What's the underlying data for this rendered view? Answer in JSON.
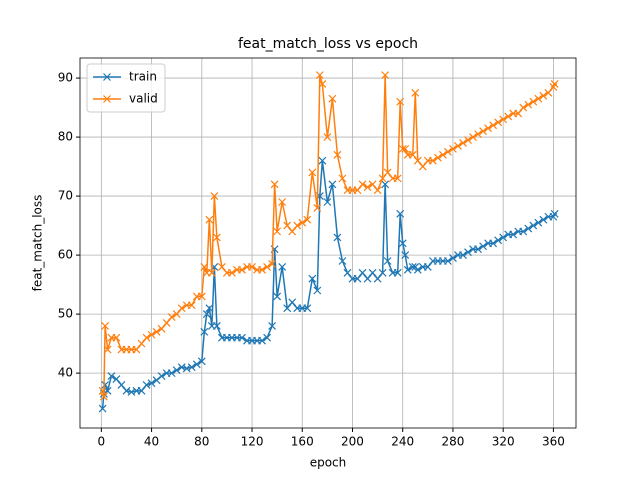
{
  "chart_data": {
    "type": "line",
    "title": "feat_match_loss vs epoch",
    "x_label": "epoch",
    "y_label": "feat_match_loss",
    "x": [
      1,
      2,
      3,
      5,
      8,
      12,
      16,
      20,
      24,
      28,
      32,
      36,
      40,
      44,
      48,
      52,
      56,
      60,
      64,
      68,
      72,
      76,
      80,
      82,
      84,
      86,
      88,
      90,
      92,
      96,
      100,
      104,
      108,
      112,
      116,
      120,
      124,
      128,
      132,
      136,
      138,
      140,
      144,
      148,
      152,
      156,
      160,
      164,
      168,
      172,
      174,
      176,
      180,
      184,
      188,
      192,
      196,
      200,
      204,
      208,
      212,
      216,
      220,
      224,
      226,
      228,
      232,
      236,
      238,
      240,
      242,
      244,
      248,
      250,
      252,
      256,
      260,
      264,
      268,
      272,
      276,
      280,
      284,
      288,
      292,
      296,
      300,
      304,
      308,
      312,
      316,
      320,
      324,
      328,
      332,
      336,
      340,
      344,
      348,
      352,
      356,
      360,
      361
    ],
    "series": [
      {
        "name": "train",
        "color": "#1f77b4",
        "values": [
          34,
          36.5,
          38,
          37,
          39.5,
          39,
          38,
          37,
          36.8,
          37,
          37,
          38,
          38.3,
          38.8,
          39.5,
          40,
          40,
          40.5,
          41,
          40.8,
          41,
          41.5,
          42,
          47,
          50,
          51,
          48,
          58,
          48,
          46,
          46,
          46,
          46,
          46,
          45.5,
          45.5,
          45.5,
          45.5,
          46,
          48,
          61,
          53,
          58,
          51,
          52,
          51,
          51,
          51,
          56,
          54,
          70,
          76,
          69,
          72,
          63,
          59,
          57,
          56,
          56,
          57,
          56,
          57,
          56,
          57,
          72,
          59,
          57,
          57,
          67,
          62,
          60,
          57.5,
          58,
          58,
          57.5,
          58,
          58,
          59,
          59,
          59,
          59,
          59.5,
          60,
          60,
          60.5,
          61,
          61,
          61.5,
          62,
          62,
          62.5,
          63,
          63.5,
          63.5,
          64,
          64,
          64.5,
          65,
          65.5,
          66,
          66.5,
          66.5,
          67
        ]
      },
      {
        "name": "valid",
        "color": "#ff7f0e",
        "values": [
          37,
          36,
          48,
          44,
          46,
          46,
          44,
          44,
          44,
          44,
          45,
          46,
          46.5,
          47,
          47.5,
          48.5,
          49.5,
          50,
          51,
          51.5,
          51.5,
          53,
          53,
          58,
          57,
          66,
          57,
          70,
          63,
          58,
          57,
          57,
          57.5,
          57.5,
          58,
          58,
          57.5,
          57.5,
          58,
          58.5,
          72,
          64,
          69,
          65,
          64,
          65,
          65.5,
          66,
          74,
          68,
          90.5,
          89,
          80,
          86.5,
          77,
          73,
          71,
          71,
          71,
          72,
          71.5,
          72,
          71,
          73,
          90.5,
          74,
          73,
          73,
          86,
          78,
          78,
          77,
          77,
          87.5,
          76,
          75,
          76,
          76,
          76.5,
          77,
          77.5,
          78,
          78.5,
          79,
          79.5,
          80,
          80.5,
          81,
          81.5,
          82,
          82.5,
          83,
          83.5,
          84,
          84,
          85,
          85.5,
          86,
          86.5,
          87,
          87.5,
          88.5,
          89
        ]
      }
    ],
    "xlim": [
      -17,
      378
    ],
    "ylim": [
      30.7,
      93.4
    ],
    "xticks": [
      0,
      40,
      80,
      120,
      160,
      200,
      240,
      280,
      320,
      360
    ],
    "yticks": [
      40,
      50,
      60,
      70,
      80,
      90
    ],
    "grid": true,
    "legend": "upper-left",
    "marker": "x"
  }
}
